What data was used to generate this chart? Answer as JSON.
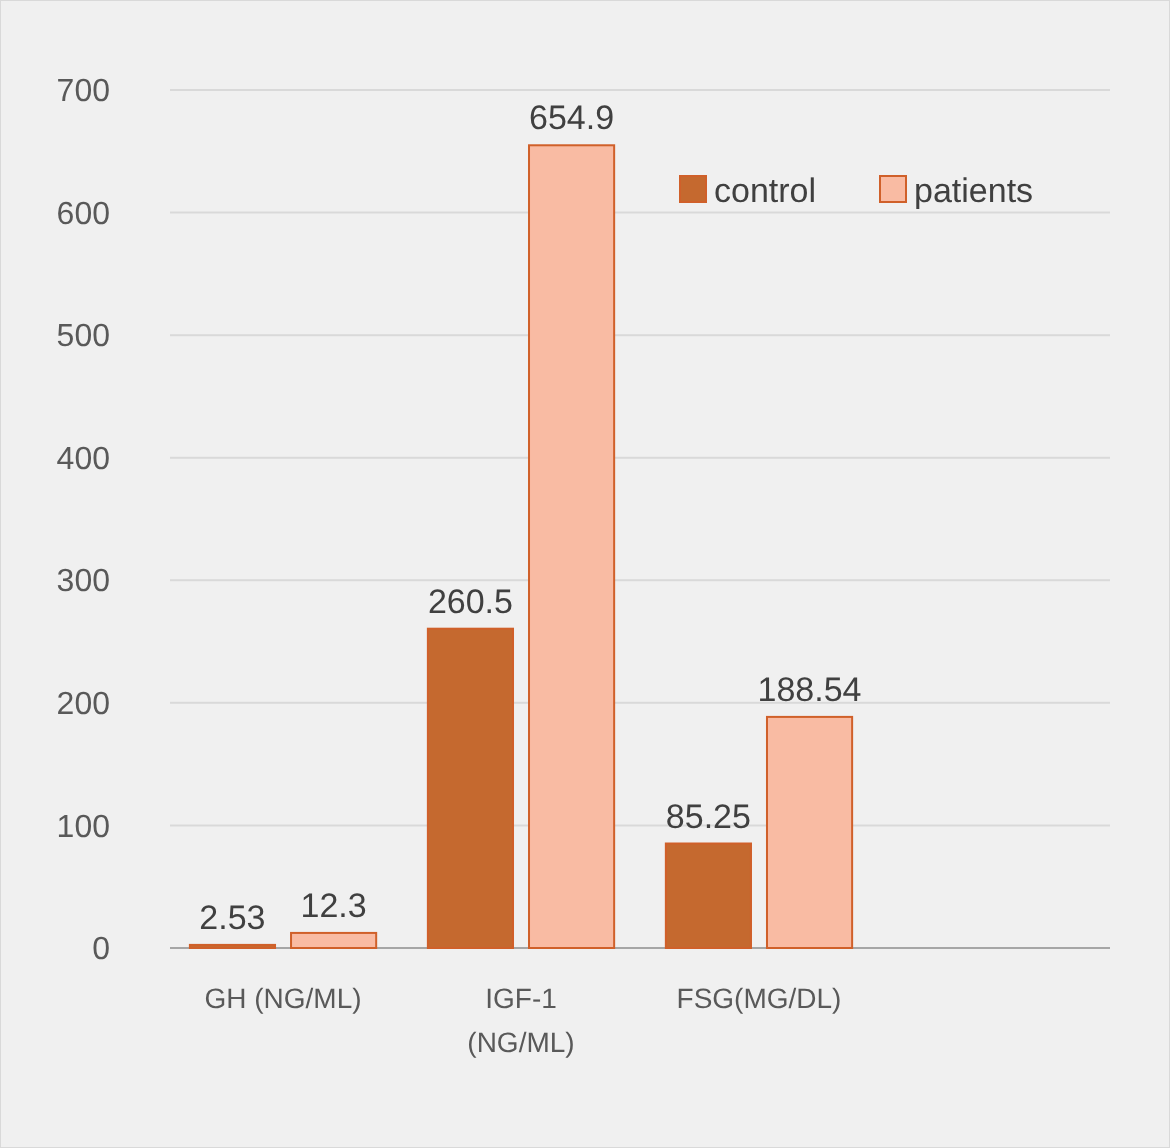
{
  "chart_data": {
    "type": "bar",
    "categories": [
      "GH (NG/ML)",
      "IGF-1 (NG/ML)",
      "FSG(MG/DL)"
    ],
    "series": [
      {
        "name": "control",
        "color": "#c5692f",
        "values": [
          2.53,
          260.5,
          85.25
        ]
      },
      {
        "name": "patients",
        "color": "#f9bba3",
        "values": [
          12.3,
          654.9,
          188.54
        ]
      }
    ],
    "ylim": [
      0,
      700
    ],
    "yticks": [
      0,
      100,
      200,
      300,
      400,
      500,
      600,
      700
    ],
    "grid": "y",
    "legend": "top right",
    "data_labels": true
  }
}
